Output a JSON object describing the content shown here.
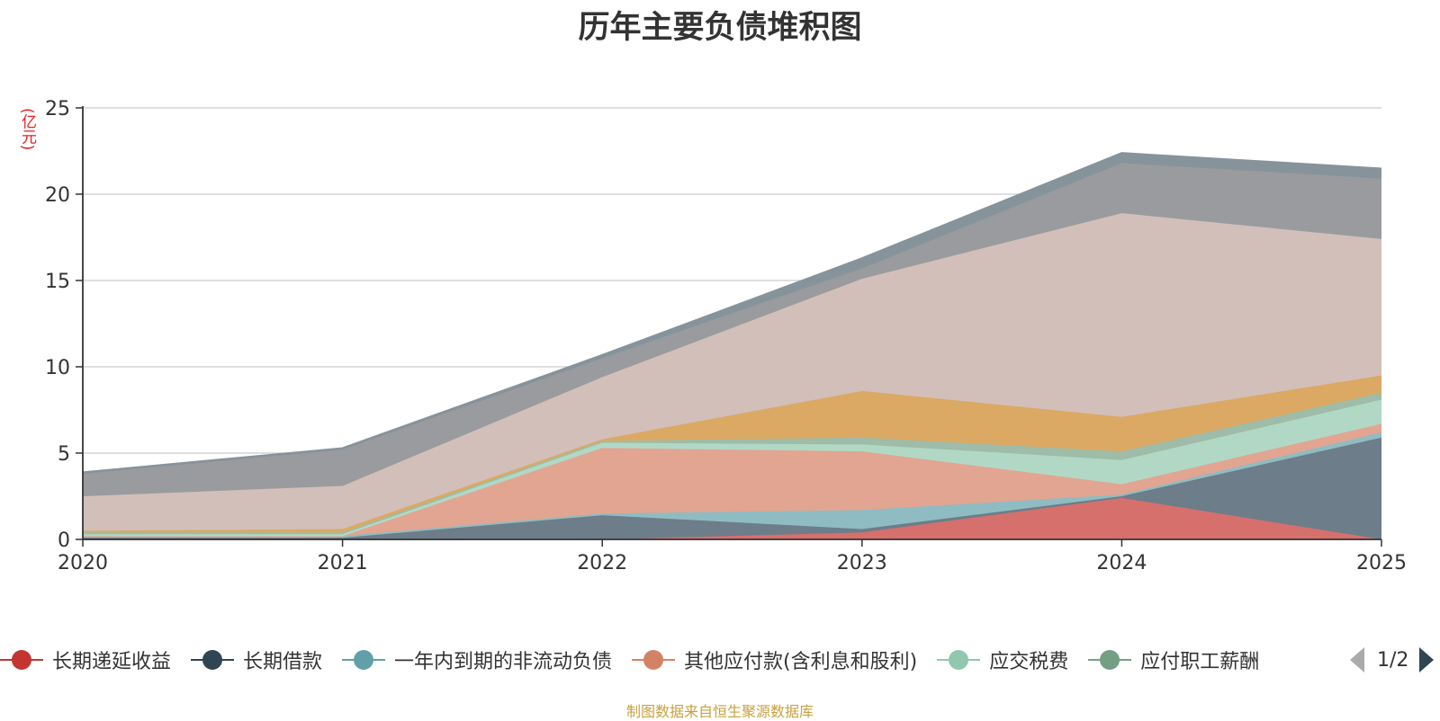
{
  "title": "历年主要负债堆积图",
  "unit_label": "(亿元)",
  "source_note": "制图数据来自恒生聚源数据库",
  "legend_pager": {
    "text": "1/2"
  },
  "chart_data": {
    "type": "area",
    "stacked": true,
    "title": "历年主要负债堆积图",
    "ylabel": "(亿元)",
    "ylim": [
      0,
      25
    ],
    "yticks": [
      "0",
      "5",
      "10",
      "15",
      "20",
      "25"
    ],
    "categories": [
      "2020",
      "2021",
      "2022",
      "2023",
      "2024",
      "2025"
    ],
    "grid": true,
    "legend_position": "bottom",
    "series": [
      {
        "name": "长期递延收益",
        "color": "#c23531",
        "fill": "#d6706d",
        "values": [
          0,
          0,
          0,
          0.4,
          2.4,
          0
        ]
      },
      {
        "name": "长期借款",
        "color": "#2f4554",
        "fill": "#6d7d89",
        "values": [
          0.1,
          0.1,
          1.4,
          0.2,
          0.1,
          5.9
        ]
      },
      {
        "name": "一年内到期的非流动负债",
        "color": "#61a0a8",
        "fill": "#8fbcc2",
        "values": [
          0.1,
          0.1,
          0.1,
          1.1,
          0.1,
          0.3
        ]
      },
      {
        "name": "其他应付款(含利息和股利)",
        "color": "#d48265",
        "fill": "#e2a591",
        "values": [
          0,
          0,
          3.8,
          3.4,
          0.6,
          0.5
        ]
      },
      {
        "name": "应交税费",
        "color": "#91c7ae",
        "fill": "#b1d8c5",
        "values": [
          0.1,
          0.1,
          0.3,
          0.4,
          1.4,
          1.4
        ]
      },
      {
        "name": "应付职工薪酬",
        "color": "#749f83",
        "fill": "#9ebca8",
        "values": [
          0.1,
          0.1,
          0.1,
          0.4,
          0.5,
          0.4
        ]
      },
      {
        "name": "",
        "color": "#ca8622",
        "fill": "#dba963",
        "values": [
          0.1,
          0.2,
          0.1,
          2.7,
          2.0,
          1.0
        ]
      },
      {
        "name": "",
        "color": "#bda29a",
        "fill": "#d2bfb9",
        "values": [
          2.0,
          2.5,
          3.6,
          6.5,
          11.8,
          7.9
        ]
      },
      {
        "name": "",
        "color": "#6e7074",
        "fill": "#9a9b9e",
        "values": [
          1.3,
          2.1,
          1.1,
          0.6,
          2.9,
          3.5
        ]
      },
      {
        "name": "",
        "color": "#546570",
        "fill": "#87939b",
        "values": [
          0.1,
          0.1,
          0.2,
          0.6,
          0.6,
          0.6
        ]
      }
    ]
  }
}
